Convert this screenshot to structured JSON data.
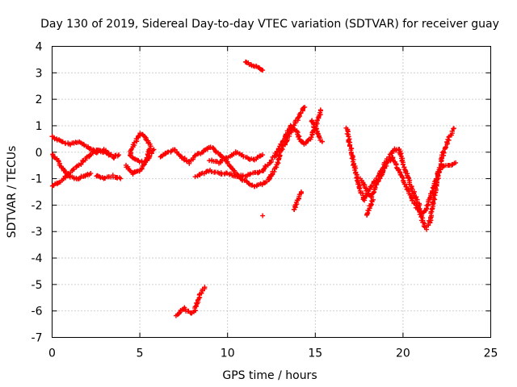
{
  "chart_data": {
    "type": "scatter",
    "title": "Day 130 of 2019, Sidereal Day-to-day VTEC variation (SDTVAR) for receiver guay",
    "xlabel": "GPS time / hours",
    "ylabel": "SDTVAR / TECUs",
    "xlim": [
      0,
      25
    ],
    "ylim": [
      -7,
      4
    ],
    "xticks": [
      "0",
      "5",
      "10",
      "15",
      "20",
      "25"
    ],
    "yticks": [
      "4",
      "3",
      "2",
      "1",
      "0",
      "-1",
      "-2",
      "-3",
      "-4",
      "-5",
      "-6",
      "-7"
    ],
    "grid": true,
    "marker": "+",
    "color": "#ff0000",
    "series": [
      {
        "tracks": [
          [
            [
              0.0,
              0.6
            ],
            [
              0.5,
              0.4
            ],
            [
              1.0,
              0.3
            ],
            [
              1.5,
              0.4
            ],
            [
              2.0,
              0.2
            ],
            [
              2.5,
              0.0
            ],
            [
              3.0,
              0.1
            ],
            [
              3.5,
              -0.2
            ],
            [
              3.8,
              -0.1
            ]
          ],
          [
            [
              0.0,
              -0.1
            ],
            [
              0.3,
              -0.3
            ],
            [
              0.6,
              -0.6
            ],
            [
              1.0,
              -0.9
            ],
            [
              1.4,
              -1.0
            ],
            [
              1.8,
              -0.9
            ],
            [
              2.2,
              -0.8
            ]
          ],
          [
            [
              0.0,
              -1.3
            ],
            [
              0.5,
              -1.1
            ],
            [
              1.0,
              -0.8
            ],
            [
              1.5,
              -0.5
            ],
            [
              2.0,
              -0.2
            ],
            [
              2.5,
              0.1
            ],
            [
              3.0,
              0.0
            ],
            [
              3.3,
              -0.1
            ]
          ],
          [
            [
              2.5,
              -0.9
            ],
            [
              3.0,
              -1.0
            ],
            [
              3.5,
              -0.9
            ],
            [
              3.9,
              -1.0
            ]
          ],
          [
            [
              4.2,
              -0.5
            ],
            [
              4.6,
              -0.8
            ],
            [
              5.0,
              -0.7
            ],
            [
              5.4,
              -0.3
            ],
            [
              5.6,
              0.2
            ],
            [
              5.3,
              0.6
            ],
            [
              5.0,
              0.7
            ],
            [
              4.7,
              0.3
            ],
            [
              4.4,
              -0.1
            ],
            [
              4.8,
              -0.3
            ],
            [
              5.2,
              -0.4
            ],
            [
              5.5,
              -0.2
            ],
            [
              5.8,
              0.1
            ]
          ],
          [
            [
              6.2,
              -0.2
            ],
            [
              6.6,
              0.0
            ],
            [
              7.0,
              0.1
            ],
            [
              7.4,
              -0.2
            ],
            [
              7.8,
              -0.4
            ],
            [
              8.2,
              -0.1
            ],
            [
              8.6,
              0.0
            ],
            [
              9.0,
              0.2
            ],
            [
              9.4,
              0.0
            ],
            [
              9.8,
              -0.2
            ],
            [
              10.2,
              -0.6
            ],
            [
              10.6,
              -0.9
            ],
            [
              11.0,
              -1.1
            ],
            [
              11.5,
              -1.3
            ],
            [
              12.0,
              -1.2
            ],
            [
              12.4,
              -1.0
            ]
          ],
          [
            [
              8.2,
              -0.9
            ],
            [
              8.6,
              -0.8
            ],
            [
              9.0,
              -0.7
            ],
            [
              9.5,
              -0.8
            ],
            [
              10.0,
              -0.8
            ],
            [
              10.5,
              -0.9
            ],
            [
              11.0,
              -0.9
            ],
            [
              11.5,
              -0.8
            ],
            [
              12.0,
              -0.7
            ],
            [
              12.5,
              -0.3
            ]
          ],
          [
            [
              9.0,
              -0.3
            ],
            [
              9.5,
              -0.4
            ],
            [
              10.0,
              -0.2
            ],
            [
              10.5,
              0.0
            ],
            [
              11.0,
              -0.2
            ],
            [
              11.5,
              -0.3
            ],
            [
              12.0,
              -0.1
            ]
          ],
          [
            [
              11.0,
              3.4
            ],
            [
              11.4,
              3.3
            ],
            [
              11.7,
              3.2
            ],
            [
              12.0,
              3.1
            ]
          ],
          [
            [
              12.0,
              -2.4
            ]
          ],
          [
            [
              12.4,
              -1.0
            ],
            [
              12.8,
              -0.5
            ],
            [
              13.0,
              0.0
            ],
            [
              13.4,
              0.5
            ],
            [
              13.8,
              1.0
            ],
            [
              14.2,
              1.5
            ],
            [
              14.4,
              1.7
            ]
          ],
          [
            [
              12.6,
              -0.2
            ],
            [
              13.0,
              0.2
            ],
            [
              13.3,
              0.6
            ],
            [
              13.6,
              1.0
            ],
            [
              13.9,
              0.8
            ],
            [
              14.1,
              0.5
            ],
            [
              14.4,
              0.3
            ],
            [
              14.8,
              0.6
            ],
            [
              15.0,
              1.0
            ],
            [
              15.2,
              1.3
            ],
            [
              15.3,
              1.6
            ]
          ],
          [
            [
              14.8,
              1.2
            ],
            [
              15.0,
              0.9
            ],
            [
              15.2,
              0.6
            ],
            [
              15.4,
              0.4
            ]
          ],
          [
            [
              13.8,
              -2.2
            ],
            [
              14.0,
              -1.8
            ],
            [
              14.2,
              -1.5
            ]
          ],
          [
            [
              7.1,
              -6.2
            ],
            [
              7.5,
              -5.9
            ],
            [
              7.9,
              -6.1
            ],
            [
              8.1,
              -6.0
            ],
            [
              8.3,
              -5.6
            ],
            [
              8.5,
              -5.3
            ],
            [
              8.7,
              -5.1
            ]
          ],
          [
            [
              16.8,
              0.9
            ],
            [
              17.0,
              0.2
            ],
            [
              17.2,
              -0.5
            ],
            [
              17.4,
              -1.0
            ],
            [
              17.6,
              -1.5
            ],
            [
              17.8,
              -1.8
            ],
            [
              18.0,
              -1.5
            ],
            [
              18.3,
              -1.2
            ],
            [
              18.6,
              -0.9
            ],
            [
              18.9,
              -0.5
            ],
            [
              19.2,
              -0.2
            ],
            [
              19.5,
              0.1
            ],
            [
              19.8,
              0.1
            ],
            [
              20.0,
              -0.4
            ],
            [
              20.3,
              -1.0
            ],
            [
              20.6,
              -1.5
            ],
            [
              20.9,
              -2.0
            ],
            [
              21.1,
              -2.6
            ],
            [
              21.3,
              -2.9
            ],
            [
              21.5,
              -2.7
            ],
            [
              21.7,
              -2.0
            ],
            [
              21.9,
              -1.2
            ],
            [
              22.1,
              -0.6
            ],
            [
              22.3,
              0.0
            ],
            [
              22.6,
              0.5
            ],
            [
              22.9,
              0.9
            ]
          ],
          [
            [
              17.6,
              -1.0
            ],
            [
              17.9,
              -1.4
            ],
            [
              18.2,
              -1.7
            ],
            [
              18.5,
              -1.2
            ],
            [
              18.8,
              -0.8
            ],
            [
              19.1,
              -0.4
            ],
            [
              19.4,
              -0.2
            ],
            [
              19.7,
              -0.6
            ],
            [
              20.0,
              -1.0
            ],
            [
              20.3,
              -1.5
            ],
            [
              20.6,
              -1.9
            ],
            [
              20.9,
              -2.2
            ],
            [
              21.2,
              -2.3
            ],
            [
              21.4,
              -2.0
            ],
            [
              21.7,
              -1.4
            ],
            [
              22.0,
              -0.8
            ],
            [
              22.3,
              -0.5
            ],
            [
              22.6,
              -0.5
            ],
            [
              23.0,
              -0.4
            ]
          ],
          [
            [
              17.9,
              -2.4
            ],
            [
              18.1,
              -2.1
            ],
            [
              18.3,
              -1.8
            ]
          ]
        ]
      }
    ]
  }
}
